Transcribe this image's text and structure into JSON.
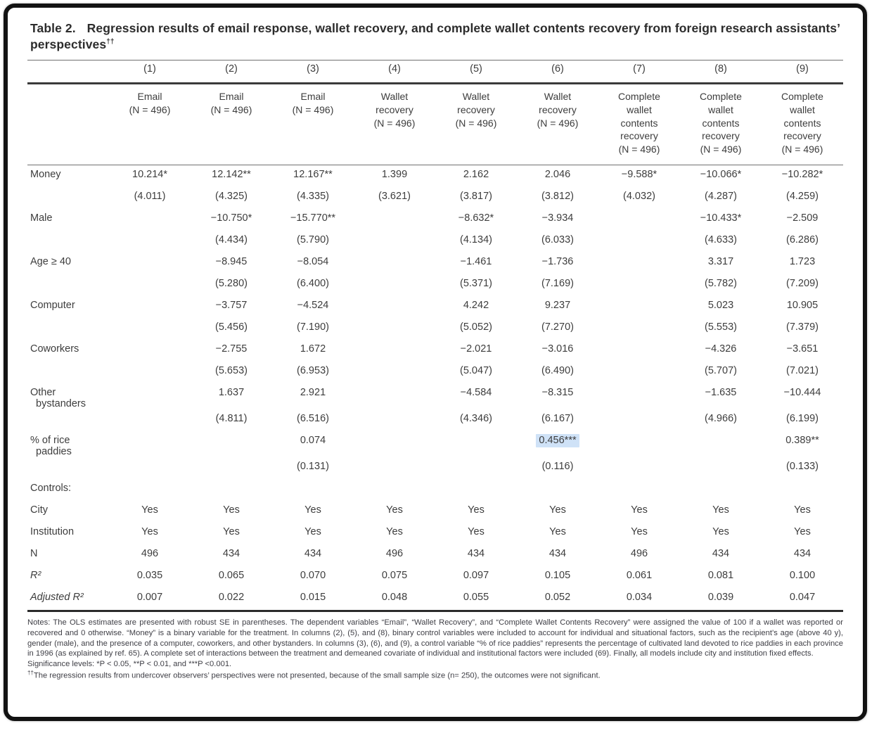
{
  "title": {
    "prefix": "Table 2.",
    "text": "Regression results of email response, wallet recovery, and complete wallet contents recovery from foreign research assistants’ perspectives",
    "dagger": "††"
  },
  "table": {
    "highlight_color": "#cfe2f7",
    "column_numbers": [
      "(1)",
      "(2)",
      "(3)",
      "(4)",
      "(5)",
      "(6)",
      "(7)",
      "(8)",
      "(9)"
    ],
    "column_headers": [
      "Email\n(N = 496)",
      "Email\n(N = 496)",
      "Email\n(N = 496)",
      "Wallet\nrecovery\n(N = 496)",
      "Wallet\nrecovery\n(N = 496)",
      "Wallet\nrecovery\n(N = 496)",
      "Complete\nwallet\ncontents\nrecovery\n(N = 496)",
      "Complete\nwallet\ncontents\nrecovery\n(N = 496)",
      "Complete\nwallet\ncontents\nrecovery\n(N = 496)"
    ],
    "rows": [
      {
        "label": "Money",
        "values": [
          "10.214*",
          "12.142**",
          "12.167**",
          "1.399",
          "2.162",
          "2.046",
          "−9.588*",
          "−10.066*",
          "−10.282*"
        ]
      },
      {
        "label": "",
        "se": true,
        "values": [
          "(4.011)",
          "(4.325)",
          "(4.335)",
          "(3.621)",
          "(3.817)",
          "(3.812)",
          "(4.032)",
          "(4.287)",
          "(4.259)"
        ]
      },
      {
        "label": "Male",
        "values": [
          "",
          "−10.750*",
          "−15.770**",
          "",
          "−8.632*",
          "−3.934",
          "",
          "−10.433*",
          "−2.509"
        ]
      },
      {
        "label": "",
        "se": true,
        "values": [
          "",
          "(4.434)",
          "(5.790)",
          "",
          "(4.134)",
          "(6.033)",
          "",
          "(4.633)",
          "(6.286)"
        ]
      },
      {
        "label": "Age ≥ 40",
        "values": [
          "",
          "−8.945",
          "−8.054",
          "",
          "−1.461",
          "−1.736",
          "",
          "3.317",
          "1.723"
        ]
      },
      {
        "label": "",
        "se": true,
        "values": [
          "",
          "(5.280)",
          "(6.400)",
          "",
          "(5.371)",
          "(7.169)",
          "",
          "(5.782)",
          "(7.209)"
        ]
      },
      {
        "label": "Computer",
        "values": [
          "",
          "−3.757",
          "−4.524",
          "",
          "4.242",
          "9.237",
          "",
          "5.023",
          "10.905"
        ]
      },
      {
        "label": "",
        "se": true,
        "values": [
          "",
          "(5.456)",
          "(7.190)",
          "",
          "(5.052)",
          "(7.270)",
          "",
          "(5.553)",
          "(7.379)"
        ]
      },
      {
        "label": "Coworkers",
        "values": [
          "",
          "−2.755",
          "1.672",
          "",
          "−2.021",
          "−3.016",
          "",
          "−4.326",
          "−3.651"
        ]
      },
      {
        "label": "",
        "se": true,
        "values": [
          "",
          "(5.653)",
          "(6.953)",
          "",
          "(5.047)",
          "(6.490)",
          "",
          "(5.707)",
          "(7.021)"
        ]
      },
      {
        "label": "Other\n  bystanders",
        "values": [
          "",
          "1.637",
          "2.921",
          "",
          "−4.584",
          "−8.315",
          "",
          "−1.635",
          "−10.444"
        ]
      },
      {
        "label": "",
        "se": true,
        "values": [
          "",
          "(4.811)",
          "(6.516)",
          "",
          "(4.346)",
          "(6.167)",
          "",
          "(4.966)",
          "(6.199)"
        ]
      },
      {
        "label": "% of rice\n  paddies",
        "highlight_col": 5,
        "values": [
          "",
          "",
          "0.074",
          "",
          "",
          "0.456***",
          "",
          "",
          "0.389**"
        ]
      },
      {
        "label": "",
        "se": true,
        "values": [
          "",
          "",
          "(0.131)",
          "",
          "",
          "(0.116)",
          "",
          "",
          "(0.133)"
        ]
      },
      {
        "label": "Controls:",
        "values": [
          "",
          "",
          "",
          "",
          "",
          "",
          "",
          "",
          ""
        ]
      },
      {
        "label": "City",
        "values": [
          "Yes",
          "Yes",
          "Yes",
          "Yes",
          "Yes",
          "Yes",
          "Yes",
          "Yes",
          "Yes"
        ]
      },
      {
        "label": "Institution",
        "values": [
          "Yes",
          "Yes",
          "Yes",
          "Yes",
          "Yes",
          "Yes",
          "Yes",
          "Yes",
          "Yes"
        ]
      },
      {
        "label": "N",
        "values": [
          "496",
          "434",
          "434",
          "496",
          "434",
          "434",
          "496",
          "434",
          "434"
        ]
      },
      {
        "label": "R²",
        "italic": true,
        "values": [
          "0.035",
          "0.065",
          "0.070",
          "0.075",
          "0.097",
          "0.105",
          "0.061",
          "0.081",
          "0.100"
        ]
      },
      {
        "label": "Adjusted R²",
        "italic": true,
        "values": [
          "0.007",
          "0.022",
          "0.015",
          "0.048",
          "0.055",
          "0.052",
          "0.034",
          "0.039",
          "0.047"
        ]
      }
    ]
  },
  "notes": {
    "paragraph": "Notes: The OLS estimates are presented with robust SE in parentheses. The dependent variables “Email”, “Wallet Recovery”, and “Complete Wallet Contents Recovery” were assigned the value of 100 if a wallet was reported or recovered and 0 otherwise. “Money” is a binary variable for the treatment. In columns (2), (5), and (8), binary control variables were included to account for individual and situational factors, such as the recipient’s age (above 40 y), gender (male), and the presence of a computer, coworkers, and other bystanders. In columns (3), (6), and (9), a control variable “% of rice paddies” represents the percentage of cultivated land devoted to rice paddies in each province in 1996 (as explained by ref. 65). A complete set of interactions between the treatment and demeaned covariate of individual and institutional factors were included (69). Finally, all models include city and institution fixed effects.",
    "significance": "Significance levels: *P < 0.05, **P < 0.01, and ***P <0.001.",
    "dagger_sup": "††",
    "dagger_text": "The regression results from undercover observers’ perspectives were not presented, because of the small sample size (n= 250), the outcomes were not significant."
  }
}
